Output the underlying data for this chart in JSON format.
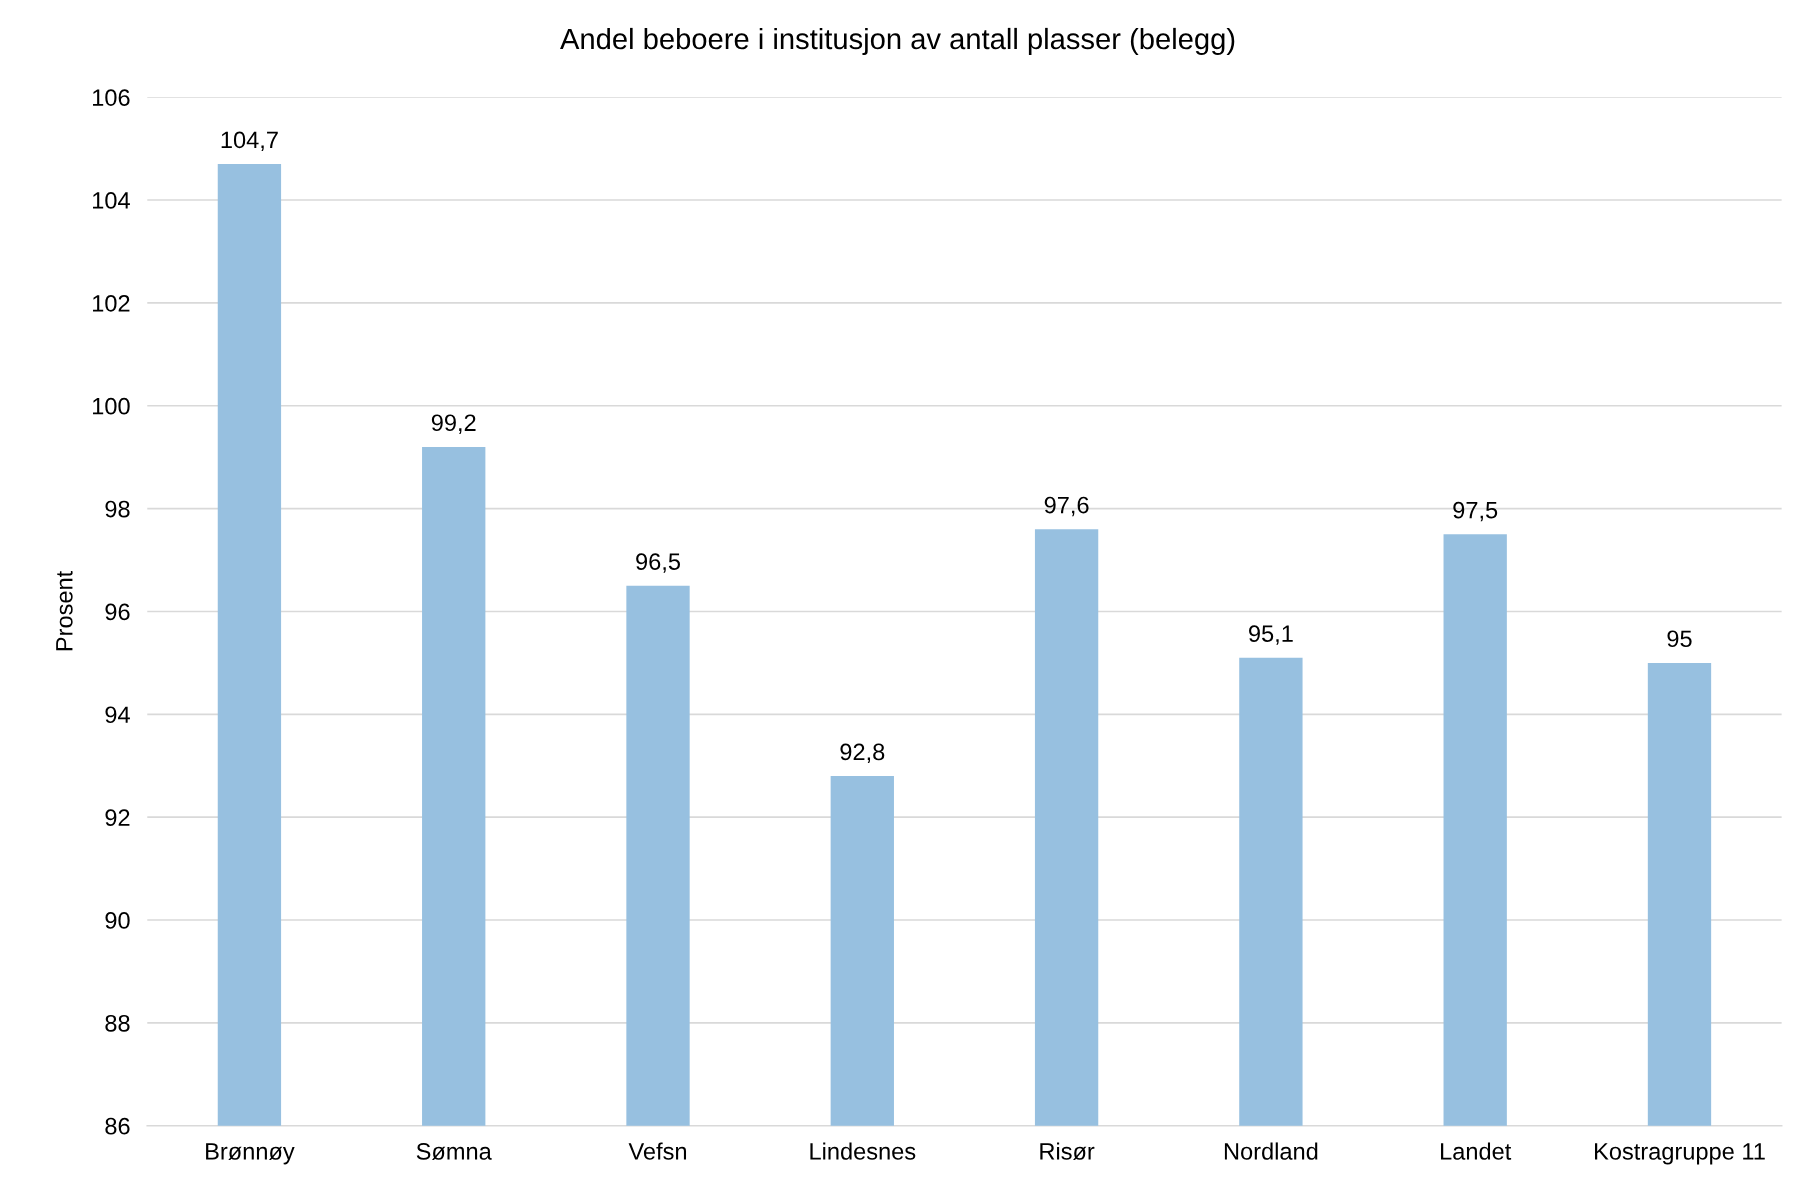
{
  "chart_data": {
    "type": "bar",
    "title": "Andel beboere i institusjon av antall plasser (belegg)",
    "ylabel": "Prosent",
    "categories": [
      "Brønnøy",
      "Sømna",
      "Vefsn",
      "Lindesnes",
      "Risør",
      "Nordland",
      "Landet",
      "Kostragruppe 11"
    ],
    "values": [
      104.7,
      99.2,
      96.5,
      92.8,
      97.6,
      95.1,
      97.5,
      95
    ],
    "value_labels": [
      "104,7",
      "99,2",
      "96,5",
      "92,8",
      "97,6",
      "95,1",
      "97,5",
      "95"
    ],
    "color": "#97c0e0",
    "ylim": [
      86,
      106
    ],
    "yticks": [
      86,
      88,
      90,
      92,
      94,
      96,
      98,
      100,
      102,
      104,
      106
    ],
    "grid": "y",
    "legend": false
  }
}
